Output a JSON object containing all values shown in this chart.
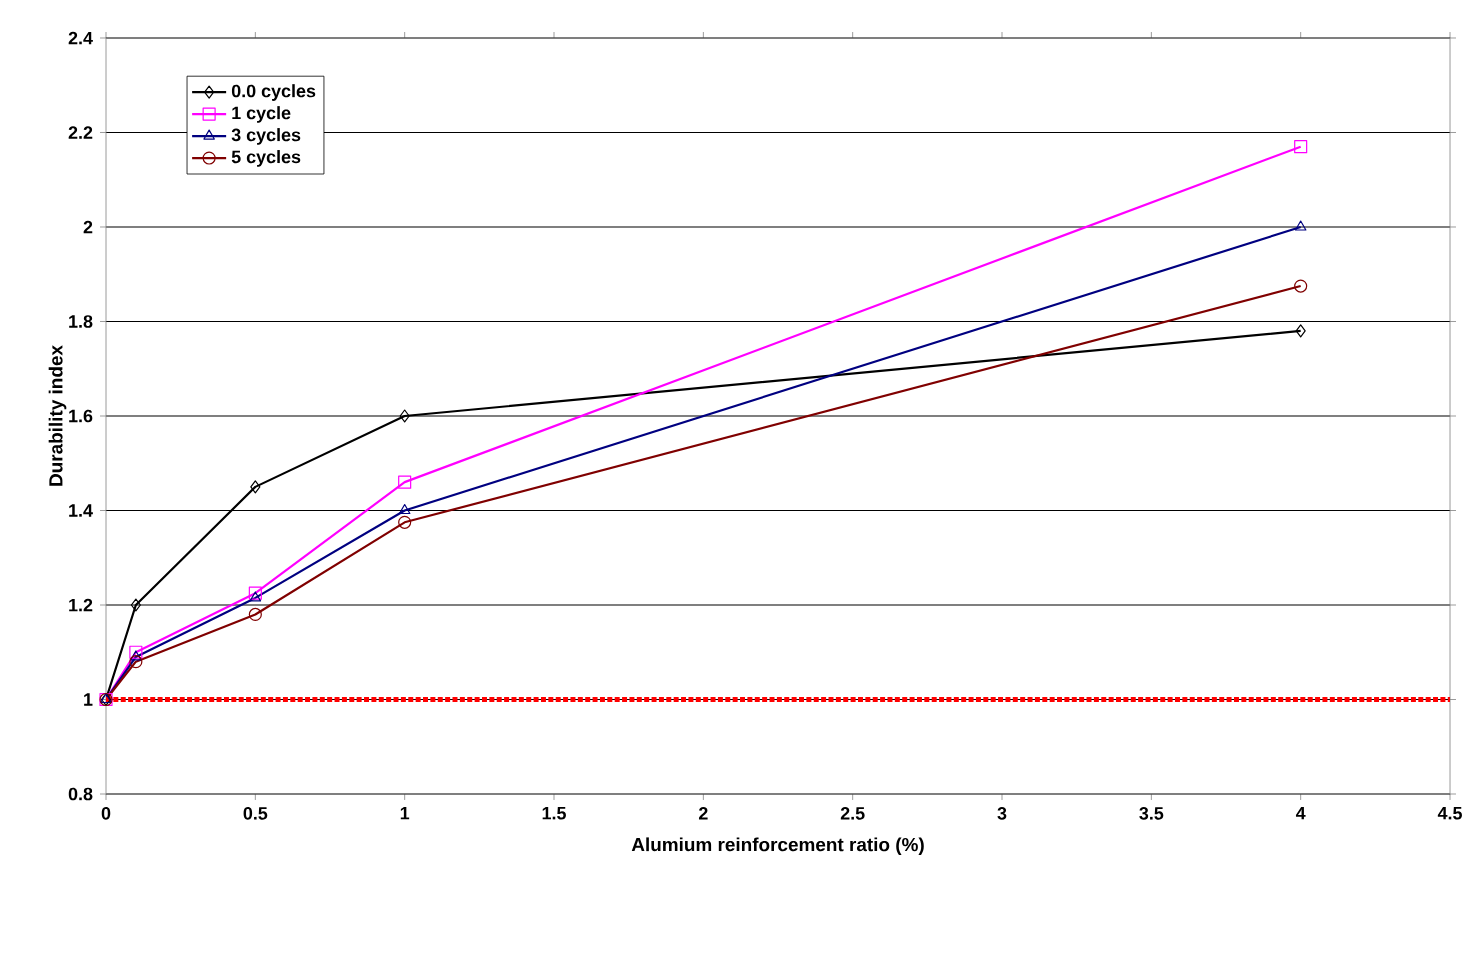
{
  "chart_data": {
    "type": "line",
    "xlabel": "Alumium reinforcement ratio (%)",
    "ylabel": "Durability index",
    "x": [
      0,
      0.1,
      0.5,
      1,
      4
    ],
    "series": [
      {
        "name": "0.0 cycles",
        "color": "#000000",
        "marker": "diamond",
        "values": [
          1.0,
          1.2,
          1.45,
          1.6,
          1.78
        ]
      },
      {
        "name": "1 cycle",
        "color": "#ff00ff",
        "marker": "square",
        "values": [
          1.0,
          1.1,
          1.225,
          1.46,
          2.17
        ]
      },
      {
        "name": "3 cycles",
        "color": "#000080",
        "marker": "triangle",
        "values": [
          1.0,
          1.09,
          1.215,
          1.4,
          2.0
        ]
      },
      {
        "name": "5 cycles",
        "color": "#800000",
        "marker": "circle",
        "values": [
          1.0,
          1.08,
          1.18,
          1.375,
          1.875
        ]
      }
    ],
    "xlim": [
      0,
      4.5
    ],
    "xticks": [
      0,
      0.5,
      1,
      1.5,
      2,
      2.5,
      3,
      3.5,
      4,
      4.5
    ],
    "ylim": [
      0.8,
      2.4
    ],
    "yticks": [
      0.8,
      1,
      1.2,
      1.4,
      1.6,
      1.8,
      2,
      2.2,
      2.4
    ],
    "ref_lines": [
      {
        "axis": "y",
        "value": 1,
        "color": "#ff0000",
        "line_style": "dotted"
      }
    ],
    "grid": "y",
    "legend": "top left",
    "line_style": "solid"
  }
}
